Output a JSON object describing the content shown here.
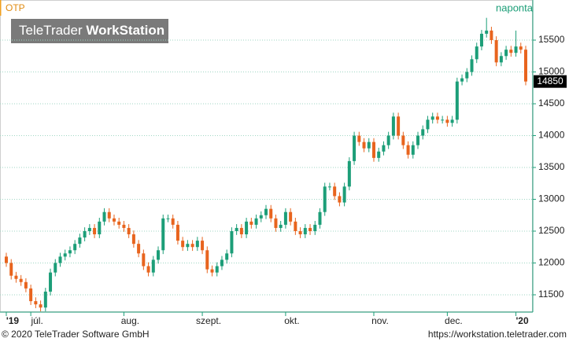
{
  "chart_data": {
    "type": "candlestick",
    "title": "OTP",
    "subtitle": "naponta",
    "watermark": [
      "TeleTrader",
      "WorkStation"
    ],
    "footer_left": "© 2020 TeleTrader Software GmbH",
    "footer_right": "https://workstation.teletrader.com",
    "up_color": "#1c9e78",
    "down_color": "#e8641e",
    "grid": true,
    "categories": [
      "'19",
      null,
      null,
      null,
      null,
      "júl.",
      null,
      null,
      null,
      null,
      null,
      null,
      null,
      null,
      null,
      null,
      null,
      null,
      null,
      null,
      null,
      null,
      null,
      null,
      "aug.",
      null,
      null,
      null,
      null,
      null,
      null,
      null,
      null,
      null,
      null,
      null,
      null,
      null,
      null,
      null,
      "szept.",
      null,
      null,
      null,
      null,
      null,
      null,
      null,
      null,
      null,
      null,
      null,
      null,
      null,
      null,
      null,
      null,
      "okt.",
      null,
      null,
      null,
      null,
      null,
      null,
      null,
      null,
      null,
      null,
      null,
      null,
      null,
      null,
      null,
      null,
      null,
      "nov.",
      null,
      null,
      null,
      null,
      null,
      null,
      null,
      null,
      null,
      null,
      null,
      null,
      null,
      null,
      "dec.",
      null,
      null,
      null,
      null,
      null,
      null,
      null,
      null,
      null,
      null,
      null,
      null,
      null,
      "'20",
      null,
      null
    ],
    "open": [
      12100,
      12000,
      11800,
      11750,
      11700,
      11600,
      11400,
      11350,
      11300,
      11550,
      11850,
      12000,
      12100,
      12150,
      12200,
      12300,
      12400,
      12500,
      12550,
      12450,
      12650,
      12800,
      12700,
      12650,
      12600,
      12550,
      12450,
      12300,
      12150,
      11950,
      11850,
      12050,
      12200,
      12700,
      12700,
      12600,
      12350,
      12250,
      12300,
      12250,
      12350,
      12200,
      11900,
      11850,
      11950,
      12050,
      12150,
      12500,
      12550,
      12450,
      12650,
      12600,
      12700,
      12750,
      12850,
      12700,
      12550,
      12600,
      12800,
      12650,
      12500,
      12450,
      12550,
      12500,
      12600,
      12800,
      13200,
      13200,
      13050,
      12950,
      13200,
      13600,
      14000,
      13900,
      13800,
      13900,
      13650,
      13750,
      13850,
      14000,
      14300,
      14000,
      13850,
      13700,
      13850,
      14000,
      14100,
      14250,
      14300,
      14250,
      14250,
      14200,
      14250,
      14850,
      14900,
      15000,
      15200,
      15400,
      15600,
      15650,
      15500,
      15150,
      15250,
      15350,
      15300,
      15400,
      15350
    ],
    "high": [
      12160,
      12060,
      11860,
      11810,
      11760,
      11660,
      11460,
      11410,
      11610,
      11910,
      12060,
      12160,
      12210,
      12260,
      12360,
      12460,
      12560,
      12610,
      12610,
      12710,
      12860,
      12860,
      12760,
      12710,
      12660,
      12610,
      12510,
      12360,
      12210,
      12010,
      12110,
      12260,
      12760,
      12760,
      12760,
      12660,
      12410,
      12360,
      12360,
      12410,
      12410,
      12260,
      11960,
      12010,
      12110,
      12210,
      12560,
      12610,
      12610,
      12710,
      12710,
      12760,
      12810,
      12910,
      12910,
      12760,
      12660,
      12860,
      12860,
      12710,
      12560,
      12610,
      12610,
      12660,
      12860,
      13260,
      13260,
      13260,
      13110,
      13260,
      13660,
      14060,
      14060,
      13960,
      13960,
      13960,
      13810,
      13910,
      14060,
      14360,
      14360,
      14060,
      13910,
      13910,
      14060,
      14160,
      14310,
      14360,
      14360,
      14310,
      14310,
      14310,
      14910,
      14960,
      15060,
      15260,
      15460,
      15660,
      15850,
      15710,
      15560,
      15310,
      15410,
      15410,
      15650,
      15460,
      15410
    ],
    "low": [
      11940,
      11740,
      11690,
      11640,
      11540,
      11340,
      11290,
      11240,
      11240,
      11490,
      11790,
      11940,
      12040,
      12090,
      12140,
      12240,
      12340,
      12440,
      12390,
      12390,
      12590,
      12640,
      12590,
      12540,
      12490,
      12390,
      12240,
      12090,
      11890,
      11790,
      11790,
      11990,
      12140,
      12640,
      12540,
      12290,
      12190,
      12190,
      12190,
      12190,
      12140,
      11840,
      11790,
      11790,
      11890,
      11990,
      12090,
      12440,
      12390,
      12390,
      12540,
      12540,
      12640,
      12690,
      12640,
      12490,
      12490,
      12540,
      12590,
      12440,
      12390,
      12390,
      12440,
      12440,
      12540,
      12740,
      13140,
      12990,
      12890,
      12890,
      13140,
      13540,
      13840,
      13740,
      13740,
      13590,
      13590,
      13690,
      13790,
      13940,
      13940,
      13790,
      13640,
      13640,
      13790,
      13940,
      14040,
      14190,
      14190,
      14190,
      14140,
      14140,
      14190,
      14790,
      14840,
      14940,
      15140,
      15340,
      15540,
      15440,
      15090,
      15090,
      15190,
      15240,
      15240,
      15290,
      14790
    ],
    "close": [
      12000,
      11800,
      11750,
      11700,
      11600,
      11400,
      11350,
      11300,
      11550,
      11850,
      12000,
      12100,
      12150,
      12200,
      12300,
      12400,
      12500,
      12550,
      12450,
      12650,
      12800,
      12700,
      12650,
      12600,
      12550,
      12450,
      12300,
      12150,
      11950,
      11850,
      12050,
      12200,
      12700,
      12700,
      12600,
      12350,
      12250,
      12300,
      12250,
      12350,
      12200,
      11900,
      11850,
      11950,
      12050,
      12150,
      12500,
      12550,
      12450,
      12650,
      12600,
      12700,
      12750,
      12850,
      12700,
      12550,
      12600,
      12800,
      12650,
      12500,
      12450,
      12550,
      12500,
      12600,
      12800,
      13200,
      13200,
      13050,
      12950,
      13200,
      13600,
      14000,
      13900,
      13800,
      13900,
      13650,
      13750,
      13850,
      14000,
      14300,
      14000,
      13850,
      13700,
      13850,
      14000,
      14100,
      14250,
      14300,
      14250,
      14250,
      14200,
      14250,
      14850,
      14900,
      15000,
      15200,
      15400,
      15600,
      15650,
      15500,
      15150,
      15250,
      15350,
      15300,
      15400,
      15350,
      14850
    ],
    "ylim": [
      11228,
      16130
    ],
    "yticks": [
      11500,
      12000,
      12500,
      13000,
      13500,
      14000,
      14500,
      15000,
      15500
    ]
  }
}
